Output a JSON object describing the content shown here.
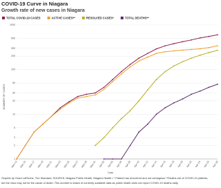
{
  "chart_data": {
    "type": "line",
    "title": "COVID-19 Curve in Niagara",
    "subtitle": "Growth rate of new cases in Niagara",
    "x_label": "Date",
    "y_label": "NUMBER OF CASES",
    "log_scale": true,
    "grid": true,
    "legend": "top",
    "categories": [
      "Mar-13",
      "Mar-15",
      "Mar-17",
      "Mar-19",
      "Mar-21",
      "Mar-23",
      "Mar-25",
      "Mar-27",
      "Mar-29",
      "Mar-31",
      "Apr-02",
      "Apr-04",
      "Apr-06",
      "Apr-08",
      "Apr-10",
      "Apr-12",
      "Apr-14",
      "Apr-16",
      "Apr-18",
      "Apr-20",
      "Apr-22",
      "Apr-24",
      "Apr-26",
      "Apr-28"
    ],
    "series": [
      {
        "name": "TOTAL COVID-19 CASES",
        "color": "#8e1f4f",
        "values": [
          1,
          2,
          4,
          6,
          9,
          14,
          19,
          25,
          28,
          30,
          40,
          60,
          90,
          130,
          180,
          230,
          290,
          340,
          380,
          420,
          460,
          510,
          550,
          600
        ]
      },
      {
        "name": "ACTIVE CASES**",
        "color": "#f0a02c",
        "values": [
          1,
          2,
          4,
          6,
          9,
          13,
          18,
          23,
          25,
          27,
          36,
          54,
          80,
          115,
          155,
          190,
          230,
          250,
          262,
          272,
          282,
          292,
          310,
          340
        ]
      },
      {
        "name": "RESOLVED CASES*",
        "color": "#b7ad1f",
        "values": [
          null,
          null,
          null,
          null,
          null,
          null,
          null,
          null,
          null,
          2,
          3,
          5,
          8,
          12,
          20,
          35,
          60,
          90,
          120,
          150,
          180,
          210,
          240,
          270
        ]
      },
      {
        "name": "TOTAL DEATHS**",
        "color": "#5b2a6b",
        "values": [
          null,
          null,
          null,
          null,
          null,
          null,
          null,
          null,
          null,
          null,
          1,
          1,
          1,
          2,
          4,
          6,
          10,
          14,
          18,
          22,
          28,
          33,
          40,
          47
        ]
      }
    ],
    "ylim": [
      1,
      1000
    ],
    "yticks": [
      1,
      2,
      3,
      5,
      10,
      20,
      30,
      50,
      100,
      200,
      300,
      500,
      1000
    ],
    "footer": [
      "Graphic by Grant LaFleche, The Standard, SOURCE: Niagara Public Health, Niagara Health • * Patient has recovered and not contagious **Deaths are of COVID-19 patients,",
      "but the virus may not be the cause of death. This number is drawn of currently available data as public health does not report COVID-19 deaths daily."
    ]
  }
}
